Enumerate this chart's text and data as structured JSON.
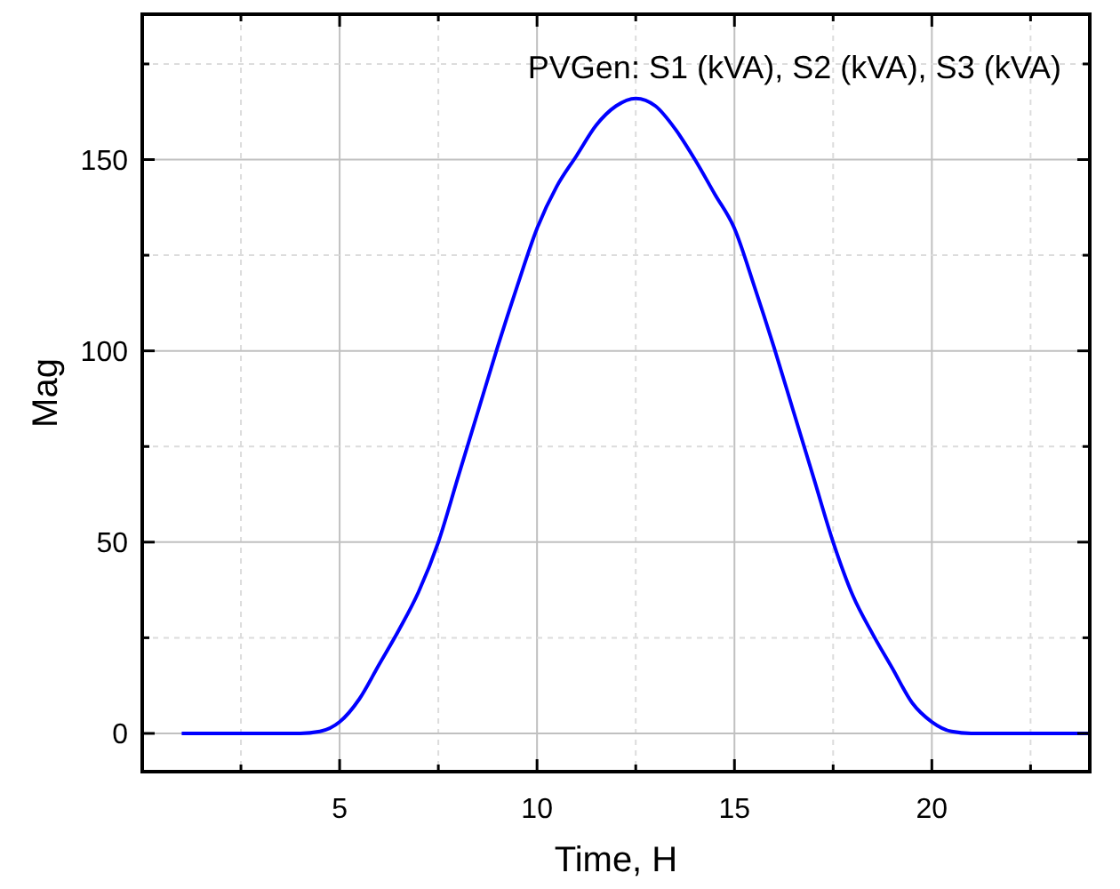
{
  "chart_data": {
    "type": "line",
    "xlabel": "Time, H",
    "ylabel": "Mag",
    "annotations": [
      "PVGen: S1 (kVA), S2 (kVA), S3 (kVA)"
    ],
    "x": [
      1,
      2,
      3,
      4,
      4.5,
      5,
      5.5,
      6,
      6.5,
      7,
      7.5,
      8,
      8.5,
      9,
      9.5,
      10,
      10.5,
      11,
      11.5,
      12,
      12.5,
      13,
      13.5,
      14,
      14.5,
      15,
      15.5,
      16,
      16.5,
      17,
      17.5,
      18,
      18.5,
      19,
      19.5,
      20,
      20.5,
      21,
      22,
      23,
      24
    ],
    "series": [
      {
        "color": "#0000ff",
        "values": [
          0,
          0,
          0,
          0,
          0.5,
          3,
          9,
          18,
          27,
          37,
          50,
          67,
          84,
          101,
          117,
          132,
          143,
          151,
          159,
          164,
          166,
          164,
          158,
          150,
          141,
          132,
          117,
          101,
          84,
          67,
          50,
          36,
          26,
          17,
          8,
          3,
          0.5,
          0,
          0,
          0,
          0
        ]
      }
    ],
    "xlim": [
      0,
      24
    ],
    "ylim": [
      -10,
      188
    ],
    "xticks": [
      {
        "value": 2.5,
        "label": null
      },
      5,
      {
        "value": 7.5,
        "label": null
      },
      10,
      {
        "value": 12.5,
        "label": null
      },
      15,
      {
        "value": 17.5,
        "label": null
      },
      20,
      {
        "value": 22.5,
        "label": null
      }
    ],
    "yticks": [
      0,
      {
        "value": 25,
        "label": null
      },
      50,
      {
        "value": 75,
        "label": null
      },
      100,
      {
        "value": 125,
        "label": null
      },
      150,
      {
        "value": 175,
        "label": null
      }
    ],
    "grid": true,
    "marker": "none",
    "line_style": "solid"
  }
}
